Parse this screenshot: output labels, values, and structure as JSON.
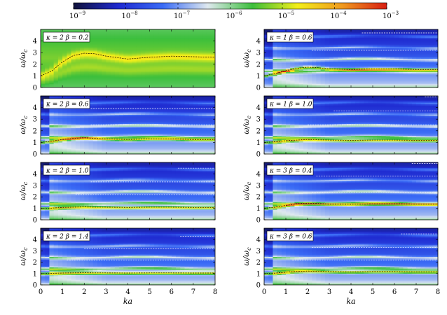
{
  "colorbar": {
    "type": "colorbar",
    "scale": "log",
    "range": [
      1e-09,
      0.001
    ],
    "tick_labels": [
      {
        "base": "10",
        "exp": "−9",
        "value": 1e-09
      },
      {
        "base": "10",
        "exp": "−8",
        "value": 1e-08
      },
      {
        "base": "10",
        "exp": "−7",
        "value": 1e-07
      },
      {
        "base": "10",
        "exp": "−6",
        "value": 1e-06
      },
      {
        "base": "10",
        "exp": "−5",
        "value": 1e-05
      },
      {
        "base": "10",
        "exp": "−4",
        "value": 0.0001
      },
      {
        "base": "10",
        "exp": "−3",
        "value": 0.001
      }
    ],
    "colors": [
      "#10123a",
      "#1f2ad0",
      "#3b6cf6",
      "#dfe9ef",
      "#3cbf3c",
      "#f3ef1a",
      "#f09a1e",
      "#d81e12"
    ]
  },
  "chart_data": [
    {
      "type": "heatmap",
      "panel": "kappa=2 beta=0.2",
      "label": "κ = 2 β = 0.2",
      "xlim": [
        0,
        8
      ],
      "ylim": [
        0,
        5
      ],
      "dispersion": {
        "x": [
          0,
          0.5,
          1,
          1.5,
          2,
          2.5,
          3,
          4,
          5,
          6,
          7,
          8
        ],
        "y": [
          1.0,
          1.4,
          2.2,
          2.75,
          2.95,
          2.9,
          2.7,
          2.45,
          2.6,
          2.7,
          2.65,
          2.6
        ]
      },
      "harmonic_lines": []
    },
    {
      "type": "heatmap",
      "panel": "kappa=1 beta=0.6",
      "label": "κ = 1 β = 0.6",
      "xlim": [
        0,
        8
      ],
      "ylim": [
        0,
        5
      ],
      "dispersion": {
        "x": [
          0,
          0.5,
          1,
          1.5,
          2,
          2.5,
          3,
          4,
          5,
          6,
          7,
          8
        ],
        "y": [
          1.0,
          1.2,
          1.45,
          1.65,
          1.75,
          1.7,
          1.6,
          1.55,
          1.6,
          1.6,
          1.55,
          1.55
        ]
      },
      "harmonic_lines": [
        {
          "x0": 2.2,
          "y": 3.2
        },
        {
          "x0": 4.5,
          "y": 4.7
        }
      ]
    },
    {
      "type": "heatmap",
      "panel": "kappa=2 beta=0.6",
      "label": "κ = 2 β = 0.6",
      "xlim": [
        0,
        8
      ],
      "ylim": [
        0,
        5
      ],
      "dispersion": {
        "x": [
          0,
          0.5,
          1,
          1.5,
          2,
          2.5,
          3,
          4,
          5,
          6,
          7,
          8
        ],
        "y": [
          1.0,
          1.1,
          1.25,
          1.35,
          1.4,
          1.35,
          1.3,
          1.25,
          1.3,
          1.3,
          1.25,
          1.25
        ]
      },
      "harmonic_lines": [
        {
          "x0": 2.3,
          "y": 2.5
        },
        {
          "x0": 2.3,
          "y": 3.9
        }
      ]
    },
    {
      "type": "heatmap",
      "panel": "kappa=1 beta=1.0",
      "label": "κ = 1 β = 1.0",
      "xlim": [
        0,
        8
      ],
      "ylim": [
        0,
        5
      ],
      "dispersion": {
        "x": [
          0,
          0.5,
          1,
          1.5,
          2,
          2.5,
          3,
          4,
          5,
          6,
          7,
          8
        ],
        "y": [
          1.0,
          1.05,
          1.15,
          1.2,
          1.25,
          1.22,
          1.2,
          1.18,
          1.2,
          1.2,
          1.18,
          1.18
        ]
      },
      "harmonic_lines": [
        {
          "x0": 2.0,
          "y": 2.5
        },
        {
          "x0": 3.2,
          "y": 3.7
        },
        {
          "x0": 7.4,
          "y": 4.9
        }
      ]
    },
    {
      "type": "heatmap",
      "panel": "kappa=2 beta=1.0",
      "label": "κ = 2 β = 1.0",
      "xlim": [
        0,
        8
      ],
      "ylim": [
        0,
        5
      ],
      "dispersion": {
        "x": [
          0,
          0.5,
          1,
          1.5,
          2,
          2.5,
          3,
          4,
          5,
          6,
          7,
          8
        ],
        "y": [
          1.0,
          1.02,
          1.08,
          1.1,
          1.12,
          1.1,
          1.1,
          1.08,
          1.1,
          1.1,
          1.08,
          1.08
        ]
      },
      "harmonic_lines": [
        {
          "x0": 1.6,
          "y": 2.2
        },
        {
          "x0": 2.3,
          "y": 3.3
        },
        {
          "x0": 6.3,
          "y": 4.5
        }
      ]
    },
    {
      "type": "heatmap",
      "panel": "kappa=3 beta=0.4",
      "label": "κ = 3 β = 0.4",
      "xlim": [
        0,
        8
      ],
      "ylim": [
        0,
        5
      ],
      "dispersion": {
        "x": [
          0,
          0.5,
          1,
          1.5,
          2,
          2.5,
          3,
          4,
          5,
          6,
          7,
          8
        ],
        "y": [
          1.0,
          1.1,
          1.25,
          1.4,
          1.45,
          1.42,
          1.38,
          1.35,
          1.4,
          1.4,
          1.38,
          1.38
        ]
      },
      "harmonic_lines": [
        {
          "x0": 2.2,
          "y": 2.4
        },
        {
          "x0": 2.4,
          "y": 3.8
        },
        {
          "x0": 6.8,
          "y": 4.9
        }
      ]
    },
    {
      "type": "heatmap",
      "panel": "kappa=2 beta=1.4",
      "label": "κ = 2 β = 1.4",
      "xlim": [
        0,
        8
      ],
      "ylim": [
        0,
        5
      ],
      "dispersion": {
        "x": [
          0,
          0.5,
          1,
          1.5,
          2,
          2.5,
          3,
          4,
          5,
          6,
          7,
          8
        ],
        "y": [
          1.0,
          1.02,
          1.05,
          1.06,
          1.07,
          1.06,
          1.06,
          1.05,
          1.06,
          1.06,
          1.05,
          1.05
        ]
      },
      "harmonic_lines": [
        {
          "x0": 1.2,
          "y": 2.2
        },
        {
          "x0": 2.0,
          "y": 3.2
        },
        {
          "x0": 6.4,
          "y": 4.3
        }
      ]
    },
    {
      "type": "heatmap",
      "panel": "kappa=3 beta=0.6",
      "label": "κ = 3 β = 0.6",
      "xlim": [
        0,
        8
      ],
      "ylim": [
        0,
        5
      ],
      "dispersion": {
        "x": [
          0,
          0.5,
          1,
          1.5,
          2,
          2.5,
          3,
          4,
          5,
          6,
          7,
          8
        ],
        "y": [
          1.0,
          1.04,
          1.12,
          1.2,
          1.22,
          1.2,
          1.18,
          1.15,
          1.18,
          1.18,
          1.15,
          1.15
        ]
      },
      "harmonic_lines": [
        {
          "x0": 1.3,
          "y": 2.2
        },
        {
          "x0": 2.2,
          "y": 3.3
        },
        {
          "x0": 6.3,
          "y": 4.5
        }
      ]
    }
  ],
  "axes": {
    "x_ticks": [
      "0",
      "1",
      "2",
      "3",
      "4",
      "5",
      "6",
      "7",
      "8"
    ],
    "y_ticks": [
      "0",
      "1",
      "2",
      "3",
      "4"
    ],
    "xlabel": "ka",
    "ylabel_main": "ω/ω",
    "ylabel_sub": "c"
  }
}
